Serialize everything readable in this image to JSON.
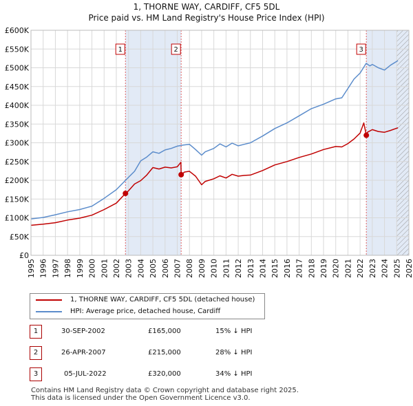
{
  "header": {
    "title_line1": "1, THORNE WAY, CARDIFF, CF5 5DL",
    "title_line2": "Price paid vs. HM Land Registry's House Price Index (HPI)"
  },
  "chart_data": {
    "type": "line",
    "title": "1, THORNE WAY, CARDIFF, CF5 5DL — Price paid vs. HM Land Registry's House Price Index (HPI)",
    "xlabel": "",
    "ylabel": "",
    "xlim": [
      1995,
      2026
    ],
    "ylim": [
      0,
      600000
    ],
    "x_ticks": [
      "1995",
      "1996",
      "1997",
      "1998",
      "1999",
      "2000",
      "2001",
      "2002",
      "2003",
      "2004",
      "2005",
      "2006",
      "2007",
      "2008",
      "2009",
      "2010",
      "2011",
      "2012",
      "2013",
      "2014",
      "2015",
      "2016",
      "2017",
      "2018",
      "2019",
      "2020",
      "2021",
      "2022",
      "2023",
      "2024",
      "2025",
      "2026"
    ],
    "y_ticks": [
      {
        "value": 0,
        "label": "£0"
      },
      {
        "value": 50000,
        "label": "£50K"
      },
      {
        "value": 100000,
        "label": "£100K"
      },
      {
        "value": 150000,
        "label": "£150K"
      },
      {
        "value": 200000,
        "label": "£200K"
      },
      {
        "value": 250000,
        "label": "£250K"
      },
      {
        "value": 300000,
        "label": "£300K"
      },
      {
        "value": 350000,
        "label": "£350K"
      },
      {
        "value": 400000,
        "label": "£400K"
      },
      {
        "value": 450000,
        "label": "£450K"
      },
      {
        "value": 500000,
        "label": "£500K"
      },
      {
        "value": 550000,
        "label": "£550K"
      },
      {
        "value": 600000,
        "label": "£600K"
      }
    ],
    "grid": true,
    "shaded_ranges": [
      {
        "from": 2002.75,
        "to": 2007.32
      },
      {
        "from": 2022.51,
        "to": 2026
      }
    ],
    "hatched_range": {
      "from": 2025.0,
      "to": 2026
    },
    "sale_markers": [
      {
        "label": "1",
        "x": 2002.75,
        "y": 165000
      },
      {
        "label": "2",
        "x": 2007.32,
        "y": 215000
      },
      {
        "label": "3",
        "x": 2022.51,
        "y": 320000
      }
    ],
    "series": [
      {
        "name": "1, THORNE WAY, CARDIFF, CF5 5DL (detached house)",
        "color": "#c00000",
        "x": [
          1995,
          1996,
          1997,
          1998,
          1999,
          2000,
          2001,
          2002,
          2002.75,
          2003,
          2003.5,
          2004,
          2004.5,
          2005,
          2005.5,
          2006,
          2006.5,
          2007,
          2007.3,
          2007.32,
          2007.6,
          2008,
          2008.5,
          2009,
          2009.3,
          2010,
          2010.5,
          2011,
          2011.5,
          2012,
          2012.5,
          2013,
          2014,
          2015,
          2016,
          2017,
          2018,
          2019,
          2020,
          2020.5,
          2021,
          2021.5,
          2022,
          2022.3,
          2022.51,
          2022.6,
          2023,
          2023.5,
          2024,
          2024.5,
          2025.1
        ],
        "values": [
          80000,
          83000,
          87000,
          94000,
          99000,
          107000,
          122000,
          139000,
          165000,
          172000,
          190000,
          199000,
          214000,
          234000,
          230000,
          235000,
          233000,
          236000,
          248000,
          215000,
          222000,
          224000,
          211000,
          188000,
          197000,
          204000,
          212000,
          206000,
          216000,
          211000,
          213000,
          214000,
          226000,
          241000,
          250000,
          261000,
          270000,
          282000,
          290000,
          289000,
          298000,
          310000,
          326000,
          353000,
          320000,
          328000,
          335000,
          330000,
          328000,
          333000,
          340000
        ]
      },
      {
        "name": "HPI: Average price, detached house, Cardiff",
        "color": "#5b8ccb",
        "x": [
          1995,
          1996,
          1997,
          1998,
          1999,
          2000,
          2001,
          2002,
          2003,
          2003.5,
          2004,
          2004.5,
          2005,
          2005.5,
          2006,
          2006.5,
          2007,
          2007.5,
          2008,
          2008.5,
          2009,
          2009.3,
          2010,
          2010.5,
          2011,
          2011.5,
          2012,
          2012.5,
          2013,
          2014,
          2015,
          2016,
          2017,
          2018,
          2019,
          2020,
          2020.5,
          2021,
          2021.5,
          2022,
          2022.5,
          2022.8,
          2023,
          2023.5,
          2024,
          2024.5,
          2025.1
        ],
        "values": [
          97000,
          101000,
          108000,
          116000,
          122000,
          131000,
          152000,
          175000,
          208000,
          224000,
          252000,
          262000,
          276000,
          272000,
          281000,
          285000,
          291000,
          294000,
          296000,
          282000,
          267000,
          276000,
          285000,
          297000,
          289000,
          299000,
          292000,
          296000,
          300000,
          318000,
          338000,
          353000,
          372000,
          391000,
          403000,
          417000,
          420000,
          445000,
          470000,
          486000,
          512000,
          505000,
          509000,
          500000,
          494000,
          507000,
          519000
        ]
      }
    ]
  },
  "legend": {
    "items": [
      {
        "label": "1, THORNE WAY, CARDIFF, CF5 5DL (detached house)",
        "color": "#c00000"
      },
      {
        "label": "HPI: Average price, detached house, Cardiff",
        "color": "#5b8ccb"
      }
    ]
  },
  "table": {
    "rows": [
      {
        "num": "1",
        "date": "30-SEP-2002",
        "price": "£165,000",
        "hpi": "15% ↓ HPI"
      },
      {
        "num": "2",
        "date": "26-APR-2007",
        "price": "£215,000",
        "hpi": "28% ↓ HPI"
      },
      {
        "num": "3",
        "date": "05-JUL-2022",
        "price": "£320,000",
        "hpi": "34% ↓ HPI"
      }
    ]
  },
  "footer": {
    "line1": "Contains HM Land Registry data © Crown copyright and database right 2025.",
    "line2": "This data is licensed under the Open Government Licence v3.0."
  }
}
